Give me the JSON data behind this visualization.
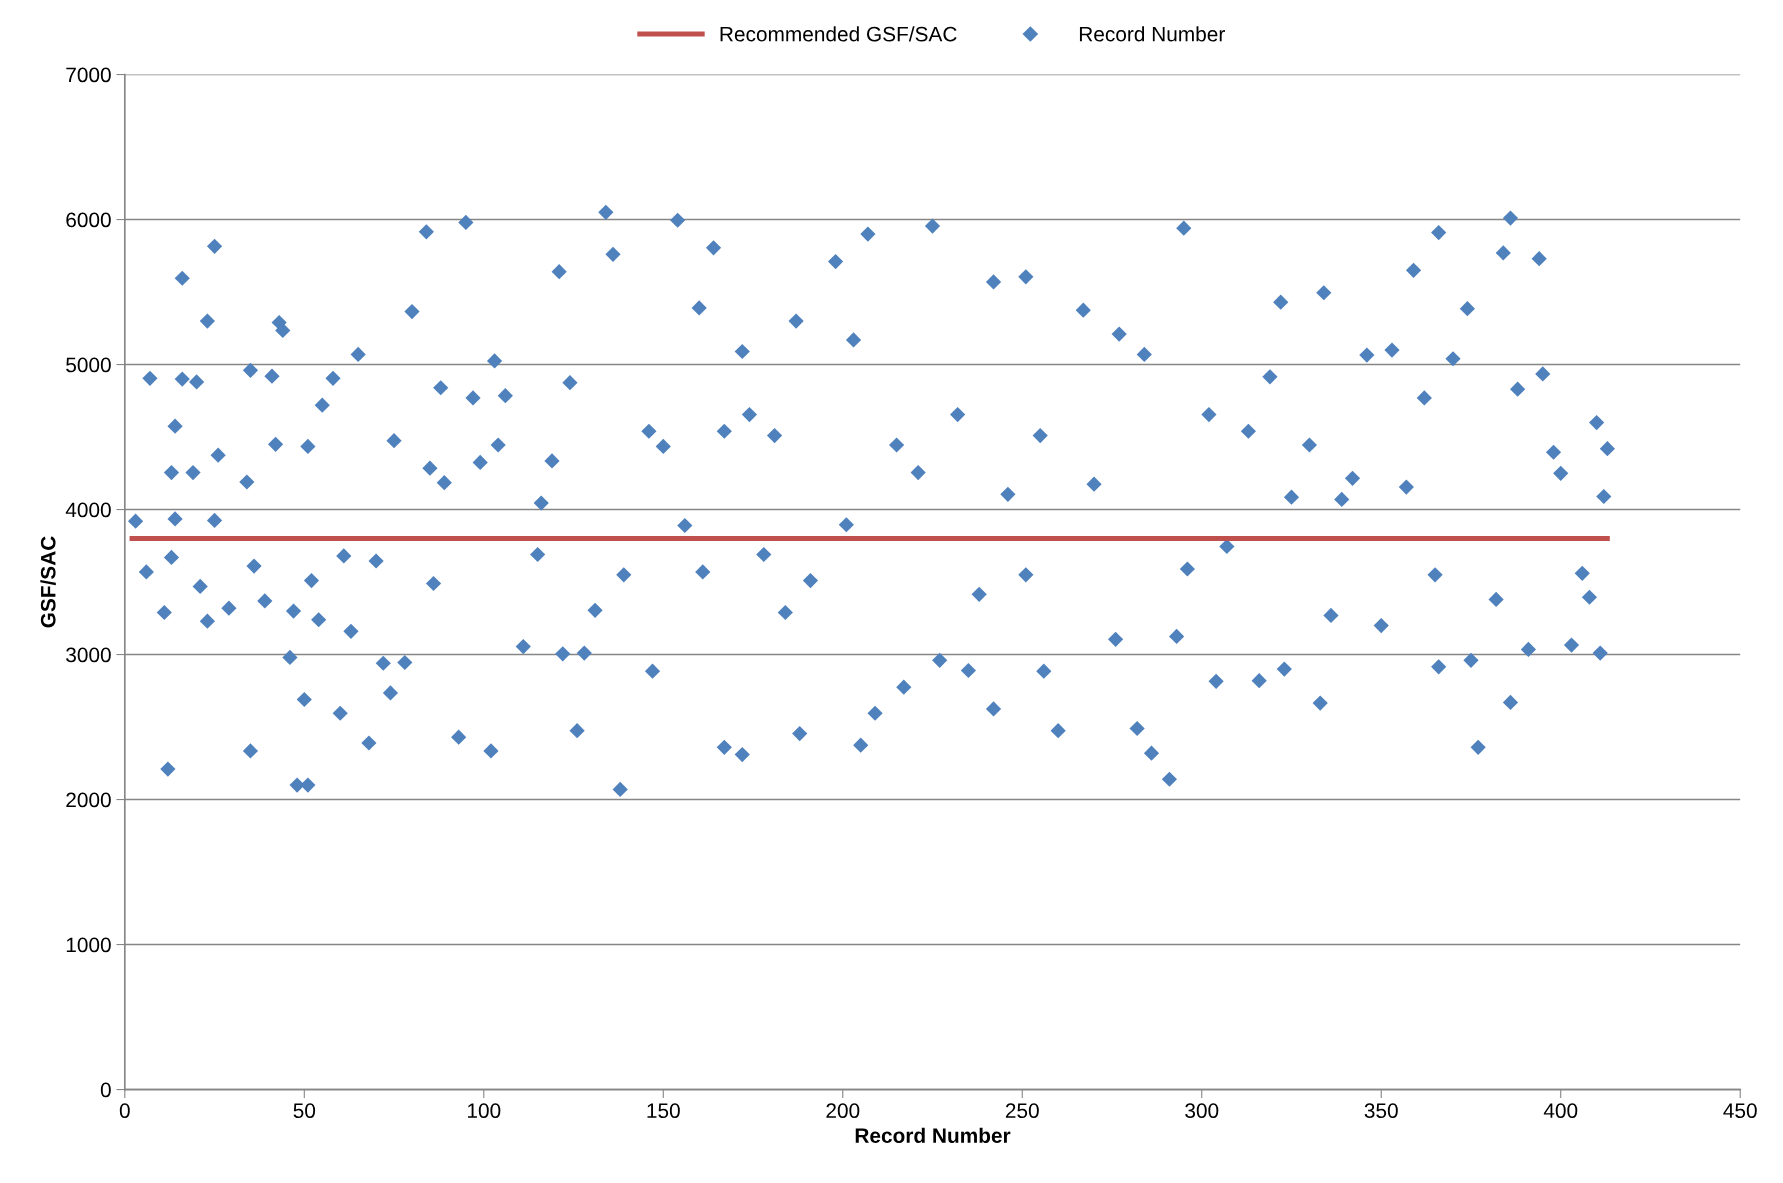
{
  "chart_data": {
    "type": "scatter",
    "xlabel": "Record Number",
    "ylabel": "GSF/SAC",
    "xlim": [
      0,
      450
    ],
    "xticks": [
      0,
      50,
      100,
      150,
      200,
      250,
      300,
      350,
      400,
      450
    ],
    "ylim": [
      0,
      7000
    ],
    "yticks": [
      0,
      1000,
      2000,
      3000,
      4000,
      5000,
      6000,
      7000
    ],
    "grid": "y",
    "legend": "top",
    "marker": "diamond",
    "series": [
      {
        "name": "Recommended GSF/SAC",
        "type": "line",
        "color": "#c0504d",
        "marker": "none",
        "line_style": "solid",
        "x": [
          2,
          413
        ],
        "values": [
          3800,
          3800
        ]
      },
      {
        "name": "Record Number",
        "color": "#4f81bd",
        "x": [
          3,
          6,
          7,
          11,
          12,
          13,
          13,
          14,
          14,
          16,
          16,
          19,
          20,
          21,
          23,
          23,
          25,
          25,
          26,
          29,
          34,
          35,
          35,
          36,
          39,
          41,
          42,
          43,
          44,
          46,
          47,
          48,
          50,
          51,
          51,
          52,
          54,
          55,
          58,
          60,
          61,
          63,
          65,
          68,
          70,
          72,
          74,
          75,
          78,
          80,
          84,
          85,
          86,
          88,
          89,
          93,
          95,
          97,
          99,
          102,
          103,
          104,
          106,
          111,
          115,
          116,
          119,
          121,
          122,
          124,
          126,
          128,
          131,
          134,
          136,
          138,
          139,
          146,
          147,
          150,
          154,
          156,
          160,
          161,
          164,
          167,
          167,
          172,
          172,
          174,
          178,
          181,
          184,
          187,
          188,
          191,
          198,
          201,
          203,
          205,
          207,
          209,
          215,
          217,
          221,
          225,
          227,
          232,
          235,
          238,
          242,
          242,
          246,
          251,
          251,
          255,
          256,
          260,
          267,
          270,
          276,
          277,
          282,
          284,
          286,
          291,
          293,
          295,
          296,
          302,
          304,
          307,
          313,
          316,
          319,
          322,
          323,
          325,
          330,
          333,
          334,
          336,
          339,
          342,
          346,
          350,
          353,
          357,
          359,
          362,
          365,
          366,
          366,
          370,
          374,
          375,
          377,
          382,
          384,
          386,
          386,
          388,
          391,
          394,
          395,
          398,
          400,
          403,
          406,
          408,
          410,
          411,
          412,
          413
        ],
        "values": [
          3920,
          3570,
          4905,
          3290,
          2210,
          4255,
          3670,
          4575,
          3935,
          5595,
          4900,
          4255,
          4880,
          3470,
          5300,
          3230,
          5815,
          3925,
          4375,
          3320,
          4190,
          4960,
          2335,
          3610,
          3370,
          4920,
          4450,
          5290,
          5235,
          2980,
          3300,
          2100,
          2690,
          2100,
          4435,
          3510,
          3240,
          4720,
          4905,
          2595,
          3680,
          3160,
          5070,
          2390,
          3645,
          2940,
          2735,
          4475,
          2945,
          5365,
          5915,
          4285,
          3490,
          4840,
          4185,
          2430,
          5980,
          4770,
          4325,
          2335,
          5025,
          4445,
          4785,
          3055,
          3690,
          4045,
          4335,
          5640,
          3005,
          4875,
          2475,
          3010,
          3305,
          6050,
          5760,
          2070,
          3550,
          4540,
          2885,
          4435,
          5995,
          3890,
          5390,
          3570,
          5805,
          4540,
          2360,
          2310,
          5090,
          4655,
          3690,
          4510,
          3290,
          5300,
          2455,
          3510,
          5710,
          3895,
          5170,
          2375,
          5900,
          2595,
          4445,
          2775,
          4255,
          5955,
          2960,
          4655,
          2890,
          3415,
          2625,
          5570,
          4105,
          5605,
          3550,
          4510,
          2885,
          2475,
          5375,
          4175,
          3105,
          5210,
          2490,
          5070,
          2320,
          2140,
          3125,
          5940,
          3590,
          4655,
          2815,
          3745,
          4540,
          2820,
          4915,
          5430,
          2900,
          4085,
          4445,
          2665,
          5495,
          3270,
          4070,
          4215,
          5065,
          3200,
          5100,
          4155,
          5650,
          4770,
          3550,
          2915,
          5910,
          5040,
          5385,
          2960,
          2360,
          3380,
          5770,
          6010,
          2670,
          4830,
          3035,
          5730,
          4935,
          4395,
          4250,
          3065,
          3560,
          3395,
          4600,
          3010,
          4090,
          4420
        ]
      }
    ]
  }
}
